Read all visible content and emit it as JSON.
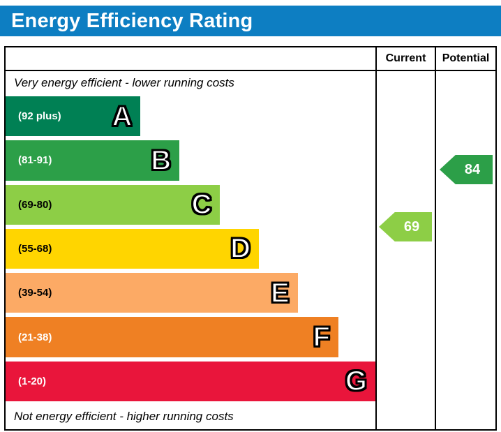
{
  "title": "Energy Efficiency Rating",
  "columns": {
    "current": "Current",
    "potential": "Potential"
  },
  "notes": {
    "top": "Very energy efficient - lower running costs",
    "bottom": "Not energy efficient - higher running costs"
  },
  "bands": [
    {
      "letter": "A",
      "range": "(92 plus)",
      "color": "#008054",
      "label_color": "#ffffff",
      "width_pct": 36.5
    },
    {
      "letter": "B",
      "range": "(81-91)",
      "color": "#2c9f48",
      "label_color": "#ffffff",
      "width_pct": 47
    },
    {
      "letter": "C",
      "range": "(69-80)",
      "color": "#8dce46",
      "label_color": "#000000",
      "width_pct": 58
    },
    {
      "letter": "D",
      "range": "(55-68)",
      "color": "#ffd500",
      "label_color": "#000000",
      "width_pct": 68.5
    },
    {
      "letter": "E",
      "range": "(39-54)",
      "color": "#fcaa65",
      "label_color": "#000000",
      "width_pct": 79
    },
    {
      "letter": "F",
      "range": "(21-38)",
      "color": "#ef8023",
      "label_color": "#ffffff",
      "width_pct": 90
    },
    {
      "letter": "G",
      "range": "(1-20)",
      "color": "#e9153b",
      "label_color": "#ffffff",
      "width_pct": 100
    }
  ],
  "ratings": {
    "current": {
      "value": "69",
      "color": "#8dce46",
      "band": "C"
    },
    "potential": {
      "value": "84",
      "color": "#2c9f48",
      "band": "B"
    }
  },
  "colors": {
    "header_bg": "#0d7ec2",
    "border": "#000000"
  },
  "chart_data": {
    "type": "bar",
    "orientation": "horizontal",
    "title": "Energy Efficiency Rating",
    "categories": [
      "A",
      "B",
      "C",
      "D",
      "E",
      "F",
      "G"
    ],
    "band_ranges": [
      "92 plus",
      "81-91",
      "69-80",
      "55-68",
      "39-54",
      "21-38",
      "1-20"
    ],
    "band_colors": [
      "#008054",
      "#2c9f48",
      "#8dce46",
      "#ffd500",
      "#fcaa65",
      "#ef8023",
      "#e9153b"
    ],
    "series": [
      {
        "name": "Current",
        "value": 69,
        "band": "C"
      },
      {
        "name": "Potential",
        "value": 84,
        "band": "B"
      }
    ],
    "annotations": [
      "Very energy efficient - lower running costs",
      "Not energy efficient - higher running costs"
    ],
    "value_range": [
      1,
      100
    ]
  }
}
